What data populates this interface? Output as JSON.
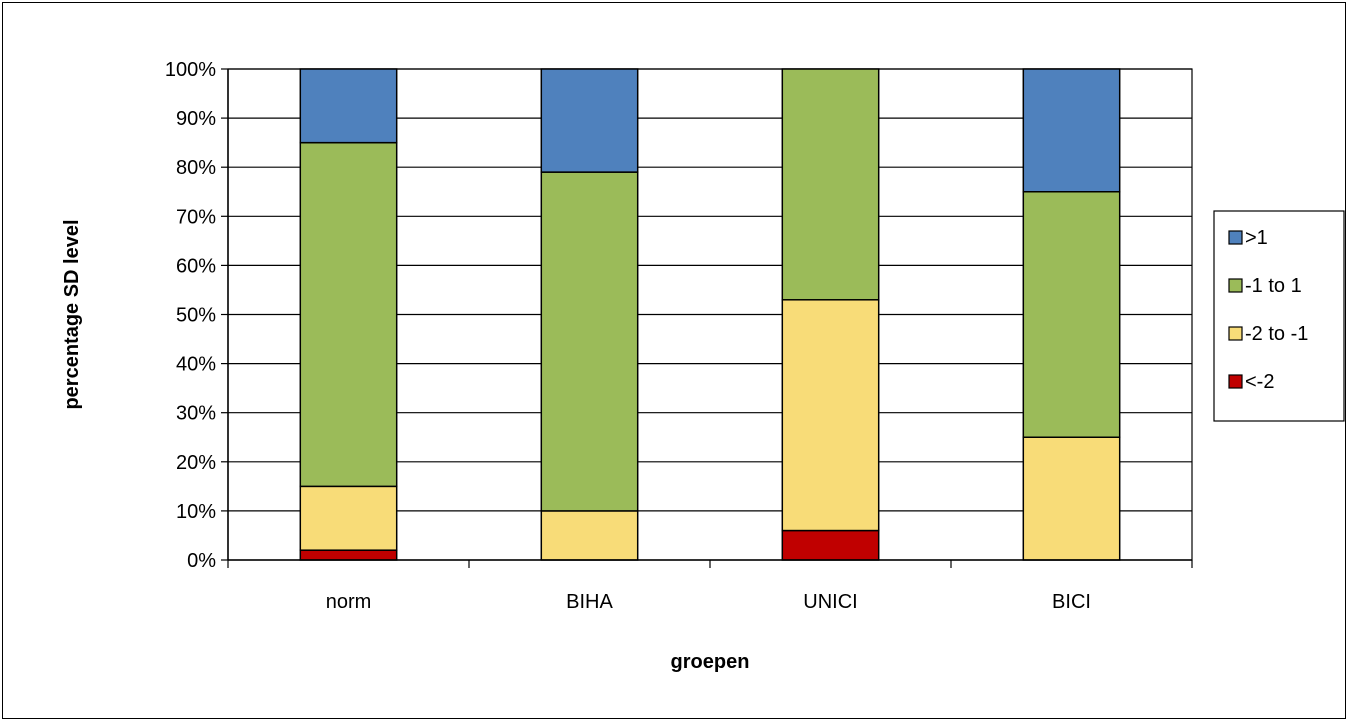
{
  "chart_data": {
    "type": "bar",
    "stacked": true,
    "categories": [
      "norm",
      "BIHA",
      "UNICI",
      "BICI"
    ],
    "series": [
      {
        "name": "<-2",
        "color": "#c00000",
        "values": [
          2,
          0,
          6,
          0
        ]
      },
      {
        "name": "-2 to -1",
        "color": "#f8dc78",
        "values": [
          13,
          10,
          47,
          25
        ]
      },
      {
        "name": "-1 to 1",
        "color": "#9bbb59",
        "values": [
          70,
          69,
          47,
          50
        ]
      },
      {
        "name": ">1",
        "color": "#4f81bd",
        "values": [
          15,
          21,
          0,
          25
        ]
      }
    ],
    "xlabel": "groepen",
    "ylabel": "percentage  SD level",
    "ylim": [
      0,
      100
    ],
    "yticks": [
      "0%",
      "10%",
      "20%",
      "30%",
      "40%",
      "50%",
      "60%",
      "70%",
      "80%",
      "90%",
      "100%"
    ],
    "grid": true,
    "legend_position": "right",
    "legend_order": [
      ">1",
      "-1 to 1",
      "-2 to -1",
      "<-2"
    ]
  }
}
